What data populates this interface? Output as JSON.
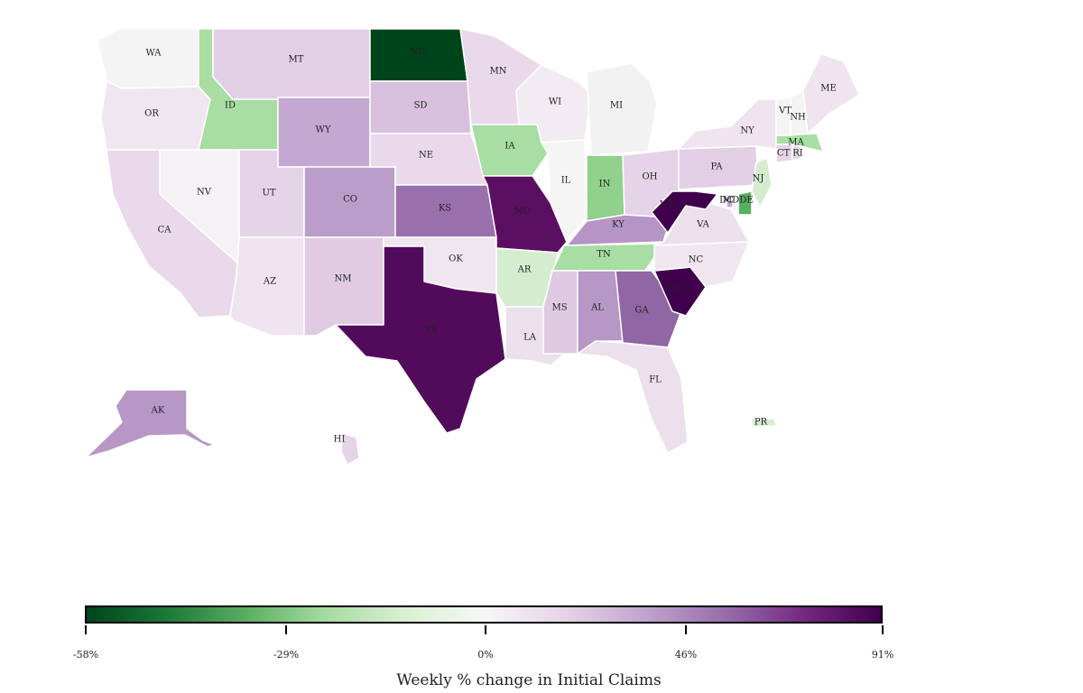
{
  "map": {
    "legend_title": "Weekly % change in Initial Claims",
    "colorscale": {
      "colors": [
        "#00441b",
        "#1b7837",
        "#5aae61",
        "#a6dba0",
        "#d9f0d3",
        "#f7f7f7",
        "#e7d4e8",
        "#c2a5cf",
        "#9970ab",
        "#762a83",
        "#40004b"
      ],
      "tick_labels": [
        "-58%",
        "-29%",
        "0%",
        "46%",
        "91%"
      ]
    },
    "states": [
      {
        "code": "WA",
        "fill": "#f4f4f4"
      },
      {
        "code": "OR",
        "fill": "#f0e6f0"
      },
      {
        "code": "CA",
        "fill": "#e9d9ea"
      },
      {
        "code": "NV",
        "fill": "#f4f2f4"
      },
      {
        "code": "ID",
        "fill": "#a8dda3"
      },
      {
        "code": "MT",
        "fill": "#e3cfe5"
      },
      {
        "code": "WY",
        "fill": "#c4a8d1"
      },
      {
        "code": "UT",
        "fill": "#e5d3e7"
      },
      {
        "code": "AZ",
        "fill": "#efe4f0"
      },
      {
        "code": "CO",
        "fill": "#bb9dca"
      },
      {
        "code": "NM",
        "fill": "#e0cbe3"
      },
      {
        "code": "ND",
        "fill": "#00441b"
      },
      {
        "code": "SD",
        "fill": "#d8c0de"
      },
      {
        "code": "NE",
        "fill": "#e9d9ea"
      },
      {
        "code": "KS",
        "fill": "#9970ab"
      },
      {
        "code": "OK",
        "fill": "#f0e6f0"
      },
      {
        "code": "TX",
        "fill": "#520b5b"
      },
      {
        "code": "MN",
        "fill": "#e9d9ea"
      },
      {
        "code": "IA",
        "fill": "#a8dda3"
      },
      {
        "code": "MO",
        "fill": "#5b0f63"
      },
      {
        "code": "AR",
        "fill": "#d4edcf"
      },
      {
        "code": "LA",
        "fill": "#ece0ed"
      },
      {
        "code": "WI",
        "fill": "#f2ecf2"
      },
      {
        "code": "IL",
        "fill": "#f5f5f5"
      },
      {
        "code": "MI",
        "fill": "#f1f2f1"
      },
      {
        "code": "IN",
        "fill": "#90d18b"
      },
      {
        "code": "OH",
        "fill": "#e5d3e7"
      },
      {
        "code": "KY",
        "fill": "#b695c6"
      },
      {
        "code": "TN",
        "fill": "#a8dda3"
      },
      {
        "code": "MS",
        "fill": "#dfcae2"
      },
      {
        "code": "AL",
        "fill": "#b797c6"
      },
      {
        "code": "GA",
        "fill": "#9166a4"
      },
      {
        "code": "FL",
        "fill": "#ece0ed"
      },
      {
        "code": "SC",
        "fill": "#40004b"
      },
      {
        "code": "NC",
        "fill": "#f0e6f0"
      },
      {
        "code": "VA",
        "fill": "#ece0ed"
      },
      {
        "code": "WV",
        "fill": "#40004b"
      },
      {
        "code": "MD",
        "fill": "#f4f4f4"
      },
      {
        "code": "DE",
        "fill": "#5aae61"
      },
      {
        "code": "DC",
        "fill": "#c2a5cf"
      },
      {
        "code": "PA",
        "fill": "#e3cfe5"
      },
      {
        "code": "NJ",
        "fill": "#d4edcf"
      },
      {
        "code": "NY",
        "fill": "#efe4f0"
      },
      {
        "code": "CT",
        "fill": "#e7d4e8"
      },
      {
        "code": "RI",
        "fill": "#e9d9ea"
      },
      {
        "code": "MA",
        "fill": "#a8dda3"
      },
      {
        "code": "VT",
        "fill": "#f4f4f4"
      },
      {
        "code": "NH",
        "fill": "#f4f4f4"
      },
      {
        "code": "ME",
        "fill": "#efe4f0"
      },
      {
        "code": "AK",
        "fill": "#b797c6"
      },
      {
        "code": "HI",
        "fill": "#e5d3e7"
      },
      {
        "code": "PR",
        "fill": "#d4edcf"
      }
    ]
  }
}
